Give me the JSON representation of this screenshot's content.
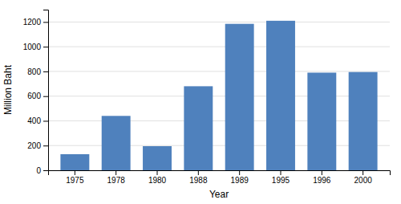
{
  "chart_data": {
    "type": "bar",
    "categories": [
      "1975",
      "1978",
      "1980",
      "1988",
      "1989",
      "1995",
      "1996",
      "2000"
    ],
    "values": [
      130,
      440,
      195,
      680,
      1185,
      1210,
      790,
      795
    ],
    "color": "#4F81BD",
    "xlabel": "Year",
    "ylabel": "Million Baht",
    "ylim": [
      0,
      1300
    ],
    "yticks": [
      0,
      200,
      400,
      600,
      800,
      1000,
      1200
    ],
    "grid": true
  }
}
